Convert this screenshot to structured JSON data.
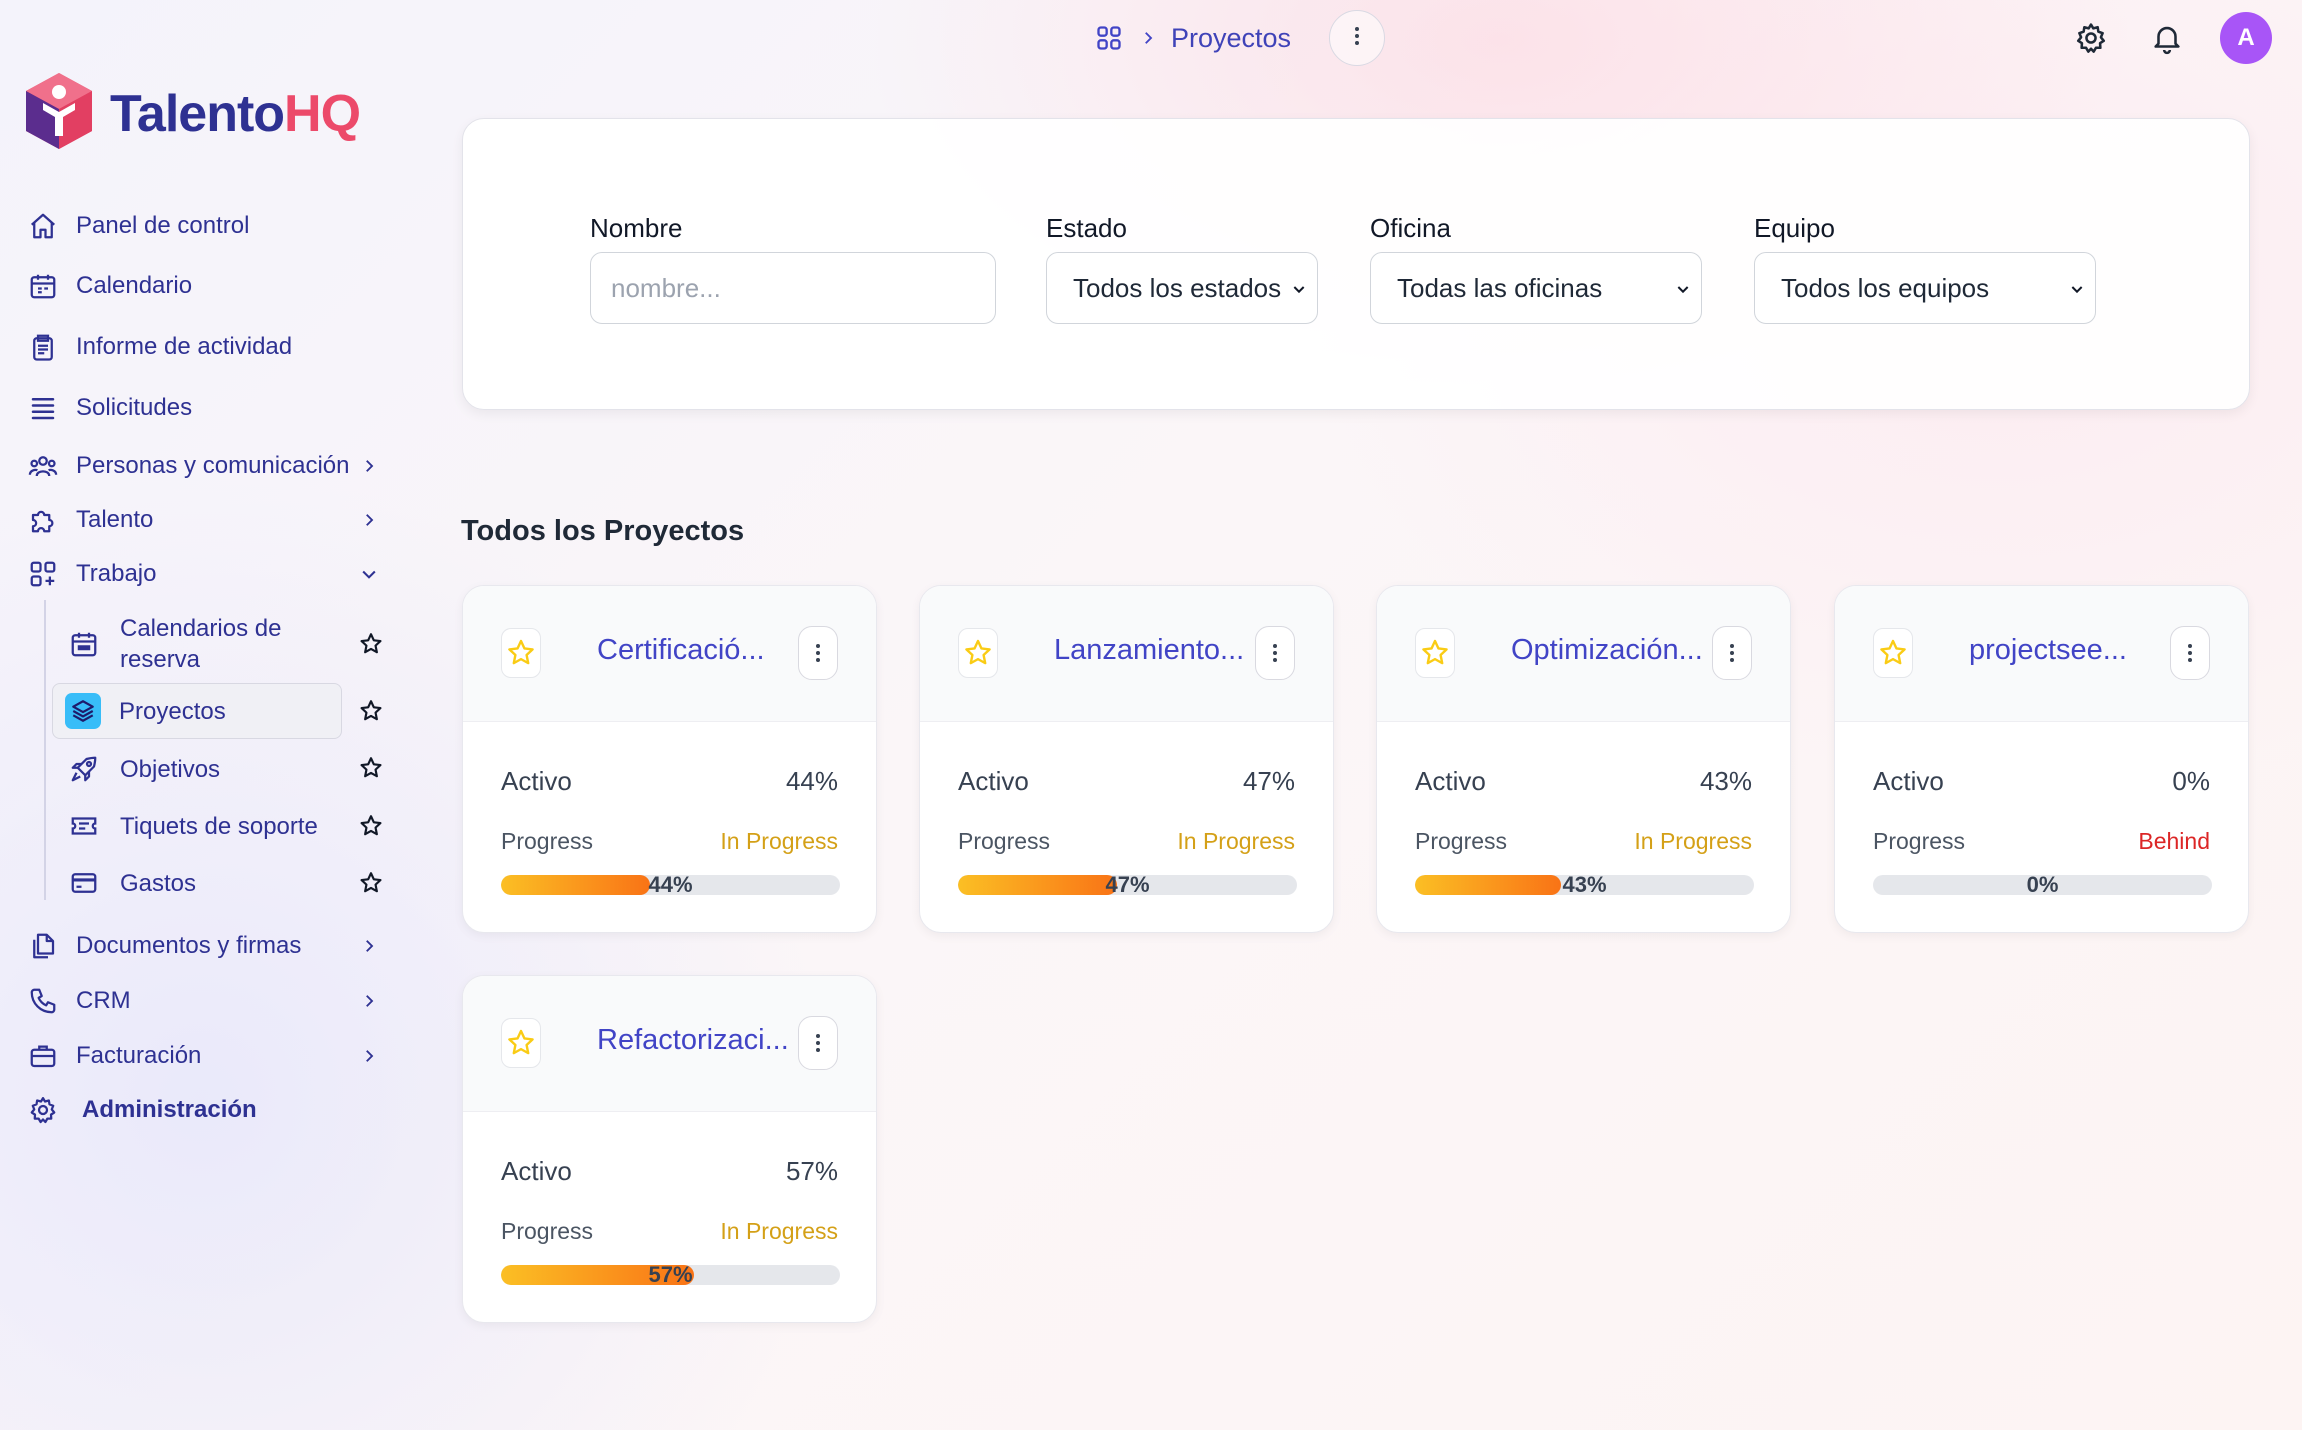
{
  "app": {
    "logo_part1": "Talento",
    "logo_part2": "HQ"
  },
  "breadcrumb": {
    "current": "Proyectos"
  },
  "user": {
    "avatar_initial": "A",
    "avatar_color": "#a855f7"
  },
  "sidebar": {
    "items": [
      {
        "label": "Panel de control",
        "icon": "home-icon"
      },
      {
        "label": "Calendario",
        "icon": "calendar-icon"
      },
      {
        "label": "Informe de actividad",
        "icon": "report-icon"
      },
      {
        "label": "Solicitudes",
        "icon": "list-icon"
      },
      {
        "label": "Personas y comunicación",
        "icon": "people-icon",
        "expandable": true
      },
      {
        "label": "Talento",
        "icon": "puzzle-icon",
        "expandable": true
      },
      {
        "label": "Trabajo",
        "icon": "apps-icon",
        "expanded": true
      },
      {
        "label": "Documentos y firmas",
        "icon": "documents-icon",
        "expandable": true
      },
      {
        "label": "CRM",
        "icon": "phone-icon",
        "expandable": true
      },
      {
        "label": "Facturación",
        "icon": "briefcase-icon",
        "expandable": true
      },
      {
        "label": "Administración",
        "icon": "gear-icon"
      }
    ],
    "work_subitems": [
      {
        "label": "Calendarios de reserva",
        "icon": "booking-calendar-icon"
      },
      {
        "label": "Proyectos",
        "icon": "layers-icon",
        "active": true
      },
      {
        "label": "Objetivos",
        "icon": "rocket-icon"
      },
      {
        "label": "Tiquets de soporte",
        "icon": "ticket-icon"
      },
      {
        "label": "Gastos",
        "icon": "credit-card-icon"
      }
    ]
  },
  "filters": {
    "name_label": "Nombre",
    "name_placeholder": "nombre...",
    "name_value": "",
    "status_label": "Estado",
    "status_value": "Todos los estados",
    "office_label": "Oficina",
    "office_value": "Todas las oficinas",
    "team_label": "Equipo",
    "team_value": "Todos los equipos"
  },
  "projects_section": {
    "title": "Todos los Proyectos"
  },
  "projects": [
    {
      "name": "Certificació...",
      "status": "Activo",
      "percent_label": "44%",
      "progress_label": "Progress",
      "state": "In Progress",
      "state_color": "#d4a017",
      "progress": 44
    },
    {
      "name": "Lanzamiento...",
      "status": "Activo",
      "percent_label": "47%",
      "progress_label": "Progress",
      "state": "In Progress",
      "state_color": "#d4a017",
      "progress": 47
    },
    {
      "name": "Optimización...",
      "status": "Activo",
      "percent_label": "43%",
      "progress_label": "Progress",
      "state": "In Progress",
      "state_color": "#d4a017",
      "progress": 43
    },
    {
      "name": "projectsee...",
      "status": "Activo",
      "percent_label": "0%",
      "progress_label": "Progress",
      "state": "Behind",
      "state_color": "#dc2626",
      "progress": 0
    },
    {
      "name": "Refactorizaci...",
      "status": "Activo",
      "percent_label": "57%",
      "progress_label": "Progress",
      "state": "In Progress",
      "state_color": "#d4a017",
      "progress": 57
    }
  ],
  "colors": {
    "accent": "#2e3192",
    "link": "#4144c6",
    "brand_pink": "#ec4a6a",
    "progress_start": "#fbbf24",
    "progress_end": "#f97316",
    "in_progress": "#d4a017",
    "behind": "#dc2626"
  }
}
